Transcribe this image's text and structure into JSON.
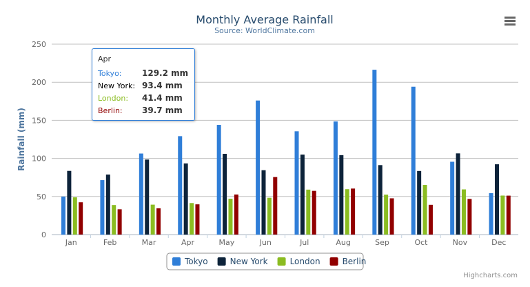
{
  "chart_data": {
    "type": "bar",
    "title": "Monthly Average Rainfall",
    "subtitle": "Source: WorldClimate.com",
    "xlabel": "",
    "ylabel": "Rainfall (mm)",
    "ylim": [
      0,
      250
    ],
    "yticks": [
      0,
      50,
      100,
      150,
      200,
      250
    ],
    "grid": true,
    "legend": "bottom-center",
    "categories": [
      "Jan",
      "Feb",
      "Mar",
      "Apr",
      "May",
      "Jun",
      "Jul",
      "Aug",
      "Sep",
      "Oct",
      "Nov",
      "Dec"
    ],
    "series": [
      {
        "name": "Tokyo",
        "color": "#2f7ed8",
        "values": [
          49.9,
          71.5,
          106.4,
          129.2,
          144.0,
          176.0,
          135.6,
          148.5,
          216.4,
          194.1,
          95.6,
          54.4
        ]
      },
      {
        "name": "New York",
        "color": "#0d233a",
        "values": [
          83.6,
          78.8,
          98.5,
          93.4,
          106.0,
          84.5,
          105.0,
          104.3,
          91.2,
          83.5,
          106.6,
          92.3
        ]
      },
      {
        "name": "London",
        "color": "#8bbc21",
        "values": [
          48.9,
          38.8,
          39.3,
          41.4,
          47.0,
          48.3,
          59.0,
          59.6,
          52.4,
          65.2,
          59.3,
          51.2
        ]
      },
      {
        "name": "Berlin",
        "color": "#910000",
        "values": [
          42.4,
          33.2,
          34.5,
          39.7,
          52.6,
          75.5,
          57.4,
          60.4,
          47.6,
          39.1,
          46.8,
          51.1
        ]
      }
    ]
  },
  "tooltip": {
    "header": "Apr",
    "rows": [
      {
        "name": "Tokyo:",
        "value": "129.2 mm",
        "color": "#2f7ed8"
      },
      {
        "name": "New York:",
        "value": "93.4 mm",
        "color": "#000000"
      },
      {
        "name": "London:",
        "value": "41.4 mm",
        "color": "#8bbc21"
      },
      {
        "name": "Berlin:",
        "value": "39.7 mm",
        "color": "#910000"
      }
    ]
  },
  "credits": "Highcharts.com",
  "menu_icon": "hamburger-menu-icon"
}
